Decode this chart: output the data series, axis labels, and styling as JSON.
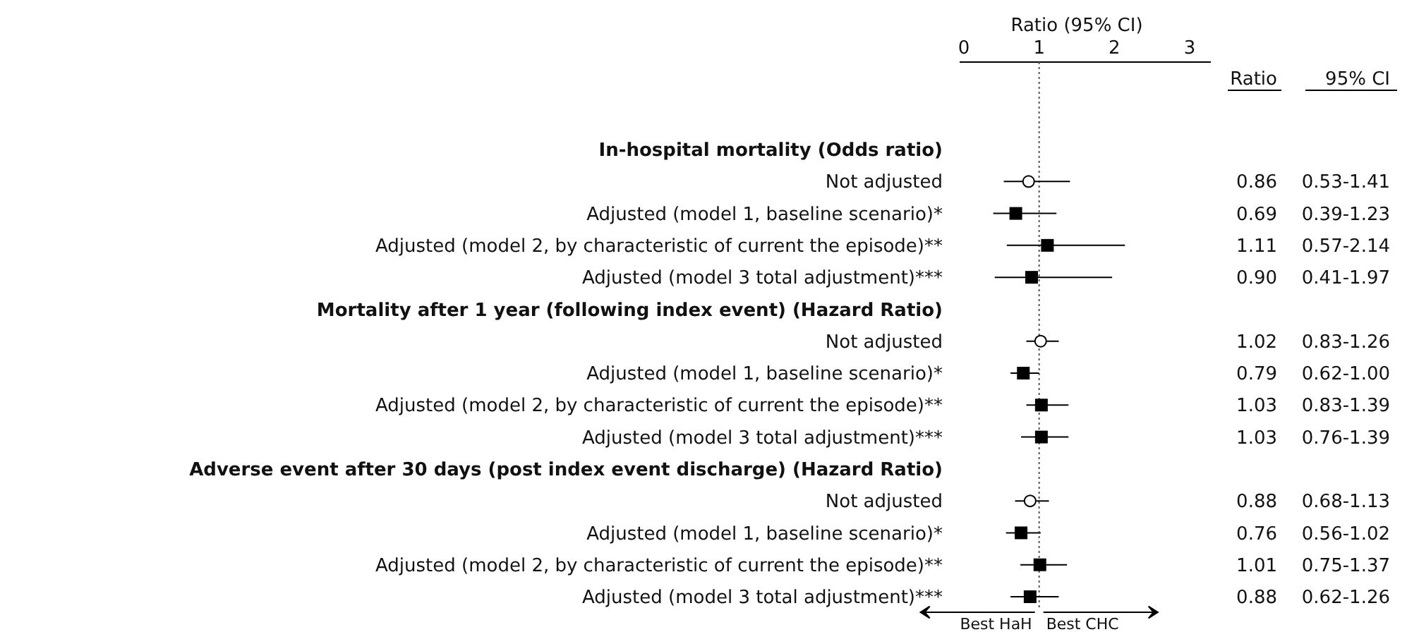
{
  "chart_data": {
    "type": "scatter",
    "orientation": "horizontal",
    "xlabel": "Ratio (95% CI)",
    "categories": [
      "In-hospital mortality (Odds ratio)",
      "Not adjusted",
      "Adjusted (model 1, baseline scenario)*",
      "Adjusted (model 2, by characteristic of current the episode)**",
      "Adjusted (model 3 total adjustment)***",
      "Mortality after 1 year (following index event) (Hazard Ratio)",
      "Not adjusted",
      "Adjusted (model 1, baseline scenario)*",
      "Adjusted (model 2, by characteristic of current the episode)**",
      "Adjusted (model 3 total adjustment)***",
      "Adverse event after 30 days (post index event discharge) (Hazard Ratio)",
      "Not adjusted",
      "Adjusted (model 1, baseline scenario)*",
      "Adjusted (model 2, by characteristic of current the episode)**",
      "Adjusted (model 3 total adjustment)***"
    ],
    "series": [
      {
        "color": "#000000",
        "marker": "circle",
        "values": [
          null,
          0.86,
          null,
          null,
          null,
          null,
          1.02,
          null,
          null,
          null,
          null,
          0.88,
          null,
          null,
          null
        ],
        "errors": [
          null,
          [
            0.53,
            1.41
          ],
          null,
          null,
          null,
          null,
          [
            0.83,
            1.26
          ],
          null,
          null,
          null,
          null,
          [
            0.68,
            1.13
          ],
          null,
          null,
          null
        ]
      },
      {
        "color": "#000000",
        "marker": "square",
        "values": [
          null,
          null,
          0.69,
          1.11,
          0.9,
          null,
          null,
          0.79,
          1.03,
          1.03,
          null,
          null,
          0.76,
          1.01,
          0.88
        ],
        "errors": [
          null,
          null,
          [
            0.39,
            1.23
          ],
          [
            0.57,
            2.14
          ],
          [
            0.41,
            1.97
          ],
          null,
          null,
          [
            0.62,
            1.0
          ],
          [
            0.83,
            1.39
          ],
          [
            0.76,
            1.39
          ],
          null,
          null,
          [
            0.56,
            1.02
          ],
          [
            0.75,
            1.37
          ],
          [
            0.62,
            1.26
          ]
        ]
      }
    ],
    "xlim": [
      0,
      3
    ],
    "xticks": [
      0,
      1,
      2,
      3
    ],
    "ref_lines": [
      {
        "axis": "x",
        "value": 1,
        "line_style": "dotted",
        "color": "#555555"
      }
    ],
    "grid": false,
    "annotations": [
      "Ratio",
      "95% CI",
      "Best HaH",
      "Best CHC",
      "0.86",
      "0.53-1.41",
      "0.69",
      "0.39-1.23",
      "1.11",
      "0.57-2.14",
      "0.90",
      "0.41-1.97",
      "1.02",
      "0.83-1.26",
      "0.79",
      "0.62-1.00",
      "1.03",
      "0.83-1.39",
      "1.03",
      "0.76-1.39",
      "0.88",
      "0.68-1.13",
      "0.76",
      "0.56-1.02",
      "1.01",
      "0.75-1.37",
      "0.88",
      "0.62-1.26"
    ]
  }
}
